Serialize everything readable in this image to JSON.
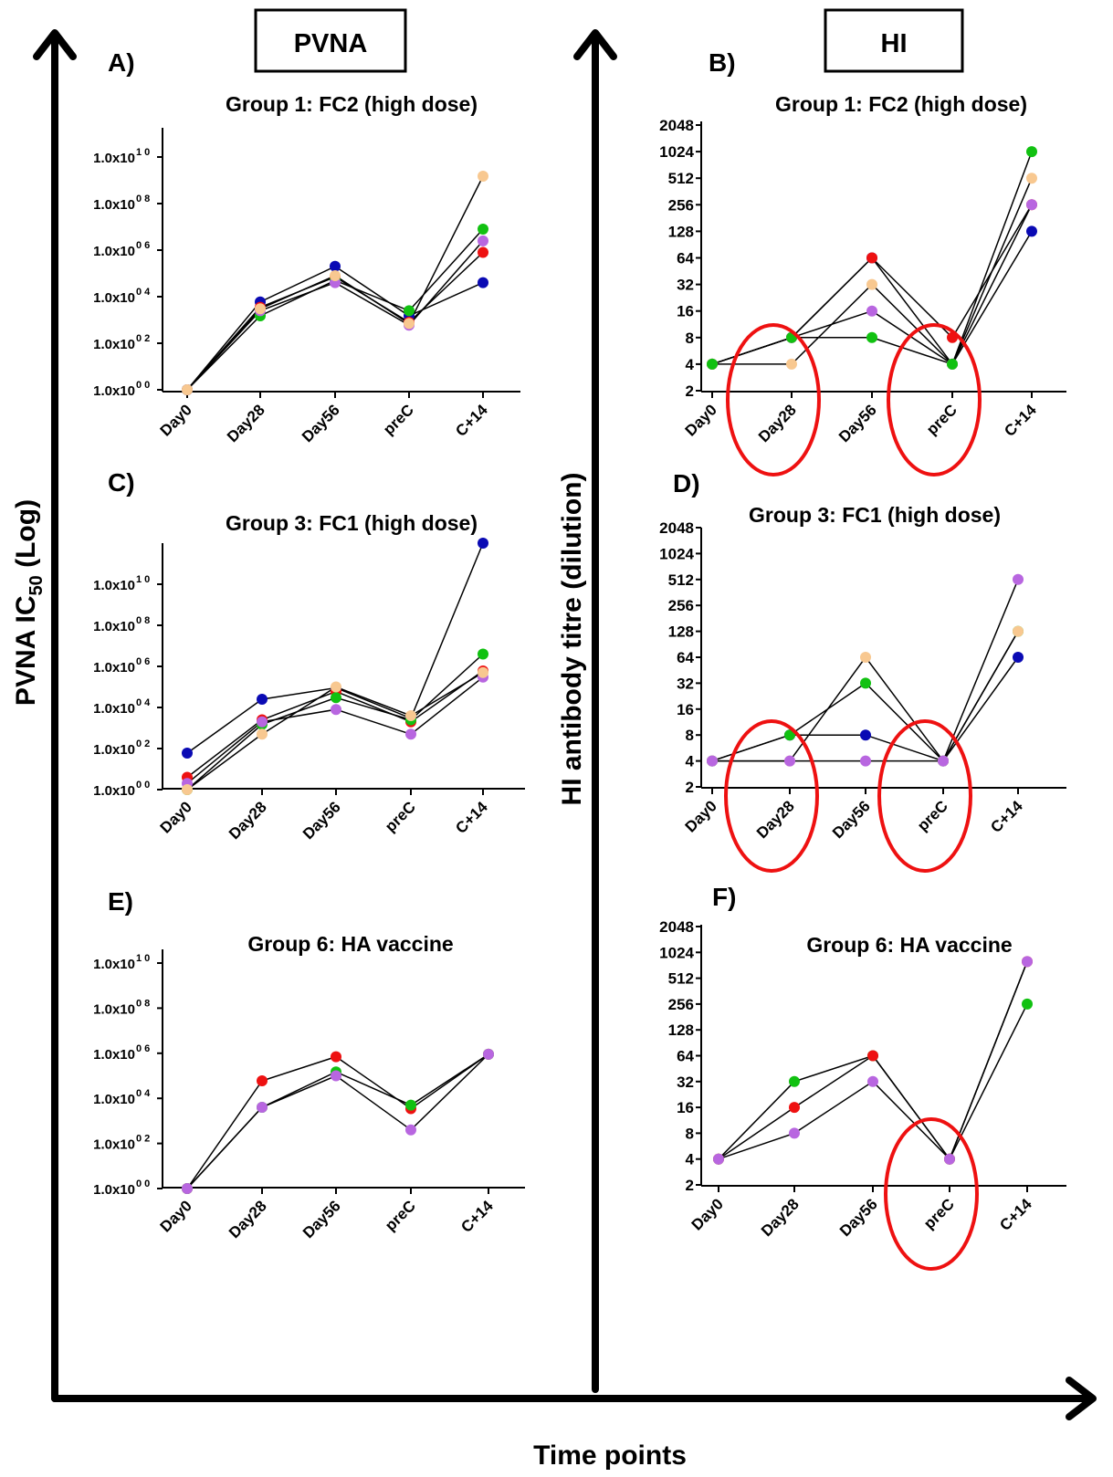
{
  "figure": {
    "left_header": "PVNA",
    "right_header": "HI",
    "y_label_left_main": "PVNA IC",
    "y_label_left_sub": "50",
    "y_label_left_tail": " (Log)",
    "y_label_right": "HI antibody titre (dilution)",
    "x_label": "Time points",
    "colors": {
      "blue": "#0a0ab4",
      "red": "#ee1111",
      "green": "#11c111",
      "purple": "#b866e0",
      "peach": "#f8c890",
      "circle": "#ee1111",
      "line": "#000000"
    }
  },
  "chart_data": [
    {
      "panel": "A)",
      "title": "Group 1: FC2 (high dose)",
      "type": "line",
      "yscale": "log10",
      "categories": [
        "Day0",
        "Day28",
        "Day56",
        "preC",
        "C+14"
      ],
      "ylim": [
        1,
        100000000000.0
      ],
      "yticks": [
        {
          "v": 1,
          "mant": "1.0x10",
          "exp": "0 0"
        },
        {
          "v": 100,
          "mant": "1.0x10",
          "exp": "0 2"
        },
        {
          "v": 10000,
          "mant": "1.0x10",
          "exp": "0 4"
        },
        {
          "v": 1000000,
          "mant": "1.0x10",
          "exp": "0 6"
        },
        {
          "v": 100000000,
          "mant": "1.0x10",
          "exp": "0 8"
        },
        {
          "v": 10000000000,
          "mant": "1.0x10",
          "exp": "1 0"
        }
      ],
      "series": [
        {
          "color": "#0a0ab4",
          "values": [
            1,
            6000,
            200000,
            1500,
            40000
          ]
        },
        {
          "color": "#ee1111",
          "values": [
            1,
            3500,
            70000,
            800,
            800000
          ]
        },
        {
          "color": "#11c111",
          "values": [
            1,
            1500,
            50000,
            2500,
            8000000
          ]
        },
        {
          "color": "#b866e0",
          "values": [
            1,
            2500,
            40000,
            600,
            2500000
          ]
        },
        {
          "color": "#f8c890",
          "values": [
            1,
            3000,
            80000,
            700,
            1500000000
          ]
        }
      ],
      "circles": []
    },
    {
      "panel": "B)",
      "title": "Group 1: FC2 (high dose)",
      "type": "line",
      "yscale": "log2",
      "categories": [
        "Day0",
        "Day28",
        "Day56",
        "preC",
        "C+14"
      ],
      "ylim": [
        2,
        2048
      ],
      "yticks": [
        {
          "v": 2,
          "label": "2"
        },
        {
          "v": 4,
          "label": "4"
        },
        {
          "v": 8,
          "label": "8"
        },
        {
          "v": 16,
          "label": "16"
        },
        {
          "v": 32,
          "label": "32"
        },
        {
          "v": 64,
          "label": "64"
        },
        {
          "v": 128,
          "label": "128"
        },
        {
          "v": 256,
          "label": "256"
        },
        {
          "v": 512,
          "label": "512"
        },
        {
          "v": 1024,
          "label": "1024"
        },
        {
          "v": 2048,
          "label": "2048"
        }
      ],
      "series": [
        {
          "color": "#0a0ab4",
          "values": [
            4,
            8,
            64,
            4,
            128
          ]
        },
        {
          "color": "#ee1111",
          "values": [
            4,
            8,
            64,
            8,
            256
          ]
        },
        {
          "color": "#b866e0",
          "values": [
            4,
            8,
            16,
            4,
            256
          ]
        },
        {
          "color": "#f8c890",
          "values": [
            4,
            4,
            32,
            4,
            512
          ]
        },
        {
          "color": "#11c111",
          "values": [
            4,
            8,
            8,
            4,
            1024
          ]
        }
      ],
      "circles": [
        "Day28",
        "preC"
      ]
    },
    {
      "panel": "C)",
      "title": "Group 3: FC1 (high dose)",
      "type": "line",
      "yscale": "log10",
      "categories": [
        "Day0",
        "Day28",
        "Day56",
        "preC",
        "C+14"
      ],
      "ylim": [
        1,
        1000000000000.0
      ],
      "yticks": [
        {
          "v": 1,
          "mant": "1.0x10",
          "exp": "0 0"
        },
        {
          "v": 100,
          "mant": "1.0x10",
          "exp": "0 2"
        },
        {
          "v": 10000,
          "mant": "1.0x10",
          "exp": "0 4"
        },
        {
          "v": 1000000,
          "mant": "1.0x10",
          "exp": "0 6"
        },
        {
          "v": 100000000,
          "mant": "1.0x10",
          "exp": "0 8"
        },
        {
          "v": 10000000000,
          "mant": "1.0x10",
          "exp": "1 0"
        }
      ],
      "series": [
        {
          "color": "#0a0ab4",
          "values": [
            60,
            25000,
            90000,
            3000,
            1000000000000
          ]
        },
        {
          "color": "#ee1111",
          "values": [
            4,
            2500,
            60000,
            2000,
            600000
          ]
        },
        {
          "color": "#11c111",
          "values": [
            1,
            1500,
            30000,
            2500,
            4000000
          ]
        },
        {
          "color": "#b866e0",
          "values": [
            2,
            2000,
            8000,
            500,
            300000
          ]
        },
        {
          "color": "#f8c890",
          "values": [
            1,
            500,
            100000,
            4000,
            500000
          ]
        }
      ],
      "circles": []
    },
    {
      "panel": "D)",
      "title": "Group 3: FC1 (high dose)",
      "type": "line",
      "yscale": "log2",
      "categories": [
        "Day0",
        "Day28",
        "Day56",
        "preC",
        "C+14"
      ],
      "ylim": [
        2,
        2048
      ],
      "yticks": [
        {
          "v": 2,
          "label": "2"
        },
        {
          "v": 4,
          "label": "4"
        },
        {
          "v": 8,
          "label": "8"
        },
        {
          "v": 16,
          "label": "16"
        },
        {
          "v": 32,
          "label": "32"
        },
        {
          "v": 64,
          "label": "64"
        },
        {
          "v": 128,
          "label": "128"
        },
        {
          "v": 256,
          "label": "256"
        },
        {
          "v": 512,
          "label": "512"
        },
        {
          "v": 1024,
          "label": "1024"
        },
        {
          "v": 2048,
          "label": "2048"
        }
      ],
      "series": [
        {
          "color": "#0a0ab4",
          "values": [
            4,
            8,
            8,
            4,
            64
          ]
        },
        {
          "color": "#11c111",
          "values": [
            4,
            8,
            32,
            4,
            128
          ]
        },
        {
          "color": "#f8c890",
          "values": [
            4,
            4,
            64,
            4,
            128
          ]
        },
        {
          "color": "#b866e0",
          "values": [
            4,
            4,
            4,
            4,
            512
          ]
        }
      ],
      "circles": [
        "Day28",
        "preC"
      ]
    },
    {
      "panel": "E)",
      "title": "Group 6: HA vaccine",
      "type": "line",
      "yscale": "log10",
      "categories": [
        "Day0",
        "Day28",
        "Day56",
        "preC",
        "C+14"
      ],
      "ylim": [
        1,
        100000000000.0
      ],
      "yticks": [
        {
          "v": 1,
          "mant": "1.0x10",
          "exp": "0 0"
        },
        {
          "v": 100,
          "mant": "1.0x10",
          "exp": "0 2"
        },
        {
          "v": 10000,
          "mant": "1.0x10",
          "exp": "0 4"
        },
        {
          "v": 1000000,
          "mant": "1.0x10",
          "exp": "0 6"
        },
        {
          "v": 100000000,
          "mant": "1.0x10",
          "exp": "0 8"
        },
        {
          "v": 10000000000,
          "mant": "1.0x10",
          "exp": "1 0"
        }
      ],
      "series": [
        {
          "color": "#ee1111",
          "values": [
            1,
            60000,
            700000,
            3500,
            900000
          ]
        },
        {
          "color": "#11c111",
          "values": [
            1,
            4000,
            150000,
            5000,
            900000
          ]
        },
        {
          "color": "#b866e0",
          "values": [
            1,
            4000,
            100000,
            400,
            900000
          ]
        }
      ],
      "circles": []
    },
    {
      "panel": "F)",
      "title": "Group 6: HA vaccine",
      "type": "line",
      "yscale": "log2",
      "categories": [
        "Day0",
        "Day28",
        "Day56",
        "preC",
        "C+14"
      ],
      "ylim": [
        2,
        2048
      ],
      "yticks": [
        {
          "v": 2,
          "label": "2"
        },
        {
          "v": 4,
          "label": "4"
        },
        {
          "v": 8,
          "label": "8"
        },
        {
          "v": 16,
          "label": "16"
        },
        {
          "v": 32,
          "label": "32"
        },
        {
          "v": 64,
          "label": "64"
        },
        {
          "v": 128,
          "label": "128"
        },
        {
          "v": 256,
          "label": "256"
        },
        {
          "v": 512,
          "label": "512"
        },
        {
          "v": 1024,
          "label": "1024"
        },
        {
          "v": 2048,
          "label": "2048"
        }
      ],
      "series": [
        {
          "color": "#11c111",
          "values": [
            4,
            32,
            64,
            4,
            256
          ]
        },
        {
          "color": "#ee1111",
          "values": [
            4,
            16,
            64,
            4,
            800
          ]
        },
        {
          "color": "#b866e0",
          "values": [
            4,
            8,
            32,
            4,
            800
          ]
        }
      ],
      "circles": [
        "preC"
      ]
    }
  ]
}
